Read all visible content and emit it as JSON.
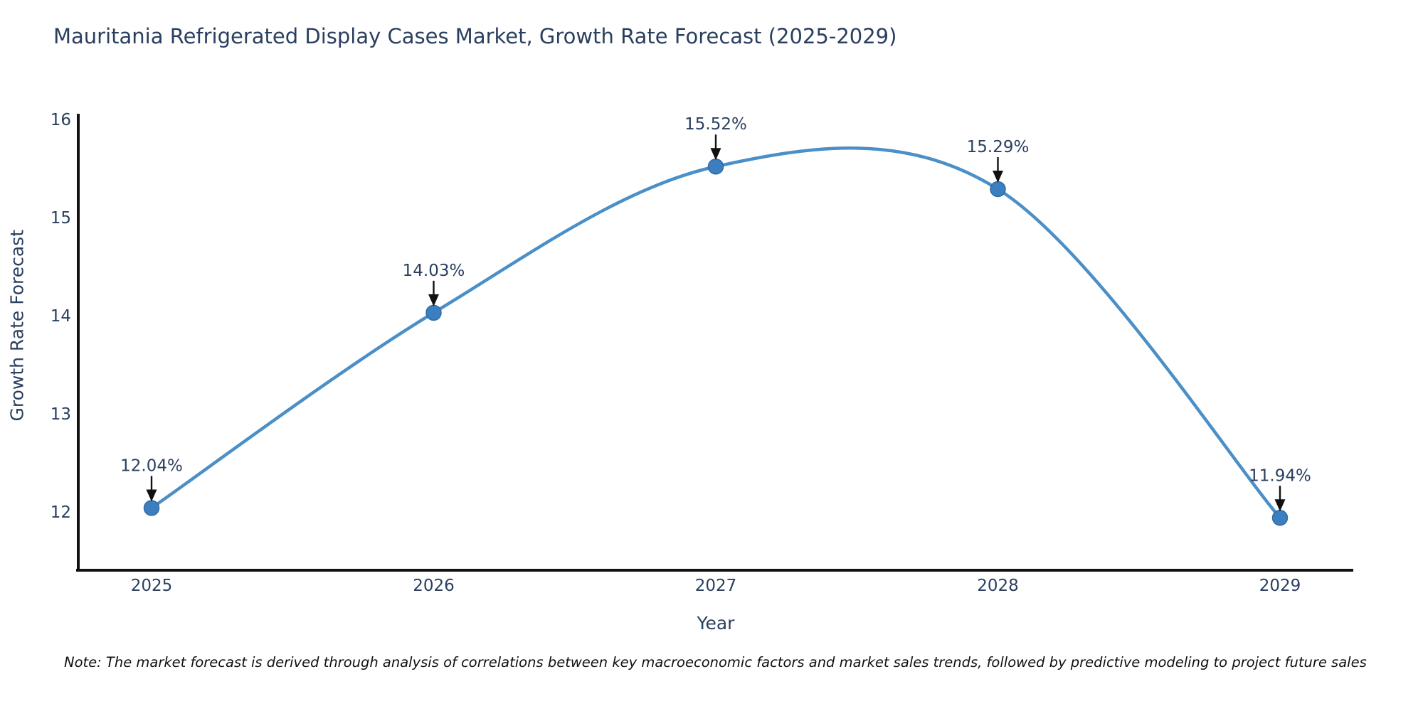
{
  "title": "Mauritania Refrigerated Display Cases Market, Growth Rate Forecast (2025-2029)",
  "note": "Note: The market forecast is derived through analysis of correlations between key macroeconomic factors and market sales trends, followed by predictive modeling to project future sales",
  "chart_data": {
    "type": "line",
    "title": "Mauritania Refrigerated Display Cases Market, Growth Rate Forecast (2025-2029)",
    "x": [
      2025,
      2026,
      2027,
      2028,
      2029
    ],
    "values": [
      12.04,
      14.03,
      15.52,
      15.29,
      11.94
    ],
    "point_labels": [
      "12.04%",
      "14.03%",
      "15.52%",
      "15.29%",
      "11.94%"
    ],
    "xlabel": "Year",
    "ylabel": "Growth Rate Forecast",
    "yticks": [
      12,
      13,
      14,
      15,
      16
    ],
    "ylim": [
      11.4,
      16.05
    ],
    "line_shape": "spline",
    "grid": false,
    "legend": "none",
    "annotations_style": "value label with downward arrow to each point",
    "colors": {
      "line": "#4a8fc7",
      "marker": "#3b7fc0",
      "marker_edge": "#2f6ba5",
      "axis": "#111111",
      "text": "#2a3f5f",
      "annotation_arrow": "#111111",
      "note_text": "#101010",
      "background": "#ffffff"
    }
  }
}
